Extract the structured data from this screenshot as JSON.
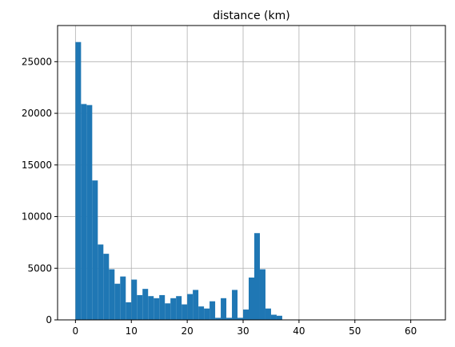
{
  "chart_data": {
    "type": "bar",
    "title": "distance (km)",
    "xlabel": "",
    "ylabel": "",
    "xlim": [
      -3.2,
      66.2
    ],
    "ylim": [
      0,
      28500
    ],
    "x_ticks": [
      0,
      10,
      20,
      30,
      40,
      50,
      60
    ],
    "y_ticks": [
      0,
      5000,
      10000,
      15000,
      20000,
      25000
    ],
    "grid": true,
    "bar_color": "#1f77b4",
    "bins": {
      "start": 0,
      "width": 1.0,
      "counts": [
        26900,
        20900,
        20800,
        13500,
        7300,
        6400,
        4900,
        3500,
        4200,
        1700,
        3900,
        2400,
        3000,
        2300,
        2100,
        2400,
        1600,
        2100,
        2300,
        1500,
        2500,
        2900,
        1300,
        1100,
        1800,
        200,
        2100,
        200,
        2900,
        200,
        1000,
        4100,
        8400,
        4900,
        1100,
        500,
        400
      ]
    }
  }
}
